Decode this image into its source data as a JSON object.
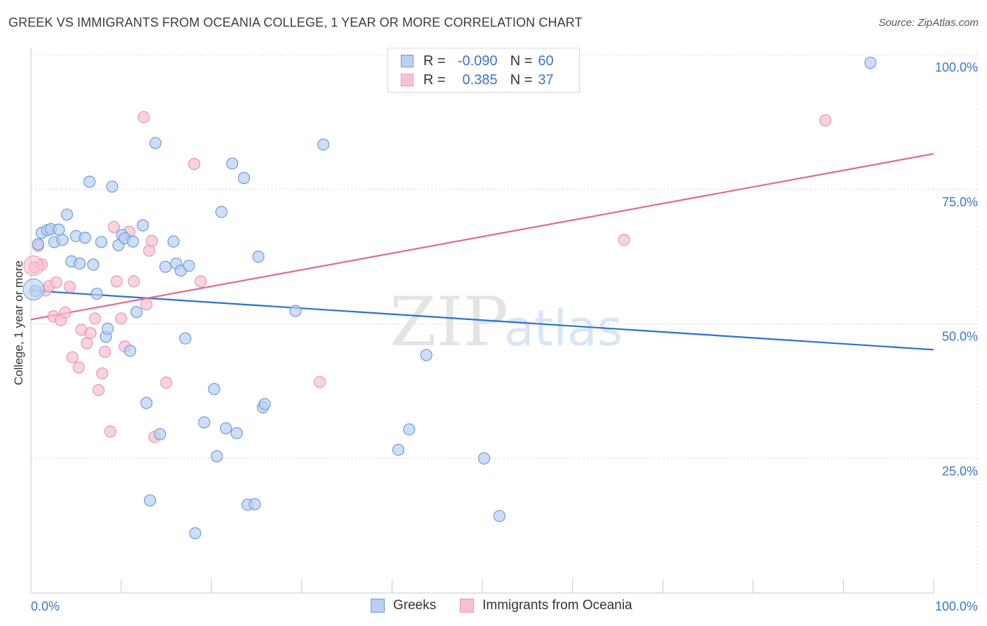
{
  "title": "GREEK VS IMMIGRANTS FROM OCEANIA COLLEGE, 1 YEAR OR MORE CORRELATION CHART",
  "source": "Source: ZipAtlas.com",
  "watermark": {
    "zip": "ZIP",
    "atlas": "atlas"
  },
  "legend_top": {
    "rows": [
      {
        "r_label": "R =",
        "r_value": "-0.090",
        "n_label": "N =",
        "n_value": "60"
      },
      {
        "r_label": "R =",
        "r_value": "0.385",
        "n_label": "N =",
        "n_value": "37"
      }
    ]
  },
  "legend_bottom": {
    "series1": "Greeks",
    "series2": "Immigrants from Oceania"
  },
  "colors": {
    "blue_fill": "#b9d0f2",
    "blue_stroke": "#6f9bd8",
    "blue_line": "#2e6fd0",
    "pink_fill": "#f7c1d2",
    "pink_stroke": "#e995b2",
    "pink_line": "#e06a93",
    "tick_text": "#3e74c6",
    "grid": "#dcdcdc"
  },
  "chart_data": {
    "type": "scatter",
    "title": "GREEK VS IMMIGRANTS FROM OCEANIA COLLEGE, 1 YEAR OR MORE CORRELATION CHART",
    "xlabel": "",
    "ylabel": "College, 1 year or more",
    "xlim": [
      0,
      100
    ],
    "ylim": [
      0,
      105
    ],
    "x_tick_labels": [
      "0.0%",
      "100.0%"
    ],
    "y_ticks": [
      25,
      50,
      75,
      100
    ],
    "y_tick_labels": [
      "25.0%",
      "50.0%",
      "75.0%",
      "100.0%"
    ],
    "grid": true,
    "legend_position": "top-center",
    "series": [
      {
        "name": "Greeks",
        "trend": [
          [
            0,
            56.2
          ],
          [
            100,
            45.2
          ]
        ],
        "points": [
          [
            0.5,
            56.1
          ],
          [
            0.8,
            64.8
          ],
          [
            1.2,
            66.9
          ],
          [
            1.8,
            67.4
          ],
          [
            2.2,
            67.6
          ],
          [
            2.6,
            65.2
          ],
          [
            3.1,
            67.5
          ],
          [
            3.5,
            65.6
          ],
          [
            4.0,
            70.3
          ],
          [
            4.5,
            61.6
          ],
          [
            5.0,
            66.3
          ],
          [
            5.4,
            61.2
          ],
          [
            6.0,
            66.0
          ],
          [
            6.5,
            76.4
          ],
          [
            6.9,
            61.0
          ],
          [
            7.3,
            55.6
          ],
          [
            7.8,
            65.2
          ],
          [
            8.3,
            47.6
          ],
          [
            8.5,
            49.1
          ],
          [
            9.0,
            75.5
          ],
          [
            9.7,
            64.6
          ],
          [
            10.1,
            66.5
          ],
          [
            10.4,
            65.9
          ],
          [
            11.0,
            45.0
          ],
          [
            11.3,
            65.3
          ],
          [
            11.7,
            52.2
          ],
          [
            12.4,
            68.3
          ],
          [
            12.8,
            35.3
          ],
          [
            13.2,
            17.2
          ],
          [
            13.8,
            83.6
          ],
          [
            14.3,
            29.5
          ],
          [
            14.9,
            60.6
          ],
          [
            15.8,
            65.3
          ],
          [
            16.1,
            61.2
          ],
          [
            16.6,
            59.9
          ],
          [
            17.1,
            47.3
          ],
          [
            17.5,
            60.8
          ],
          [
            18.2,
            11.1
          ],
          [
            19.2,
            31.7
          ],
          [
            20.3,
            37.9
          ],
          [
            20.6,
            25.4
          ],
          [
            21.1,
            70.8
          ],
          [
            21.6,
            30.6
          ],
          [
            22.3,
            79.8
          ],
          [
            22.8,
            29.7
          ],
          [
            23.6,
            77.1
          ],
          [
            24.0,
            16.4
          ],
          [
            24.8,
            16.5
          ],
          [
            25.2,
            62.5
          ],
          [
            25.7,
            34.5
          ],
          [
            25.9,
            35.1
          ],
          [
            29.3,
            52.4
          ],
          [
            32.4,
            83.3
          ],
          [
            40.7,
            26.6
          ],
          [
            41.9,
            30.4
          ],
          [
            43.8,
            44.2
          ],
          [
            50.2,
            25.0
          ],
          [
            51.9,
            14.3
          ],
          [
            56.5,
            100.0
          ],
          [
            93.0,
            98.5
          ]
        ]
      },
      {
        "name": "Immigrants from Oceania",
        "trend": [
          [
            0,
            50.8
          ],
          [
            100,
            81.6
          ]
        ],
        "points": [
          [
            0.4,
            60.5
          ],
          [
            0.8,
            64.5
          ],
          [
            1.2,
            61.0
          ],
          [
            1.6,
            56.2
          ],
          [
            2.0,
            57.0
          ],
          [
            2.5,
            51.4
          ],
          [
            2.8,
            57.7
          ],
          [
            3.3,
            50.7
          ],
          [
            3.8,
            52.1
          ],
          [
            4.3,
            56.9
          ],
          [
            4.6,
            43.8
          ],
          [
            5.3,
            41.9
          ],
          [
            5.6,
            48.9
          ],
          [
            6.2,
            46.4
          ],
          [
            6.6,
            48.3
          ],
          [
            7.1,
            51.0
          ],
          [
            7.5,
            37.7
          ],
          [
            7.9,
            40.8
          ],
          [
            8.2,
            44.8
          ],
          [
            8.8,
            30.0
          ],
          [
            9.2,
            68.0
          ],
          [
            9.5,
            57.9
          ],
          [
            10.0,
            51.0
          ],
          [
            10.4,
            45.8
          ],
          [
            10.9,
            67.1
          ],
          [
            11.4,
            57.9
          ],
          [
            12.5,
            88.4
          ],
          [
            12.8,
            53.6
          ],
          [
            13.1,
            63.6
          ],
          [
            13.4,
            65.4
          ],
          [
            13.7,
            29.0
          ],
          [
            15.0,
            39.1
          ],
          [
            18.1,
            79.7
          ],
          [
            18.8,
            57.9
          ],
          [
            32.0,
            39.2
          ],
          [
            65.7,
            65.6
          ],
          [
            88.0,
            87.8
          ]
        ]
      }
    ]
  }
}
